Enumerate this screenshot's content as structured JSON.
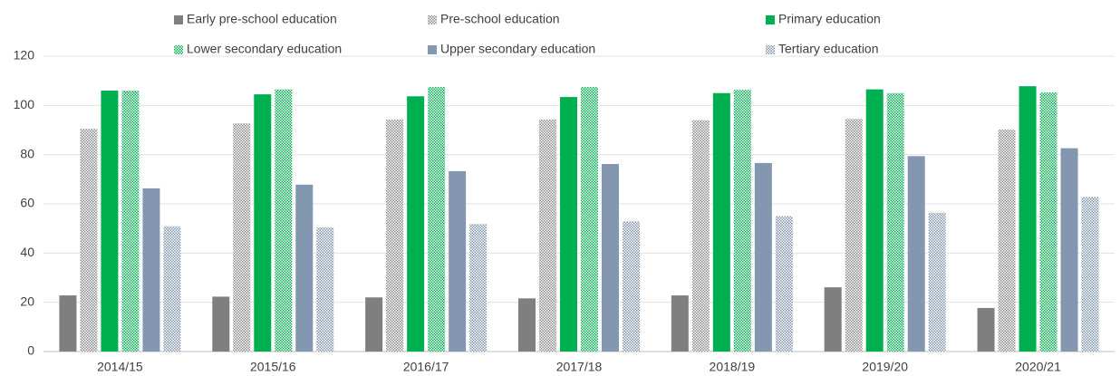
{
  "chart_data": {
    "type": "bar",
    "categories": [
      "2014/15",
      "2015/16",
      "2016/17",
      "2017/18",
      "2018/19",
      "2019/20",
      "2020/21"
    ],
    "series": [
      {
        "name": "Early pre-school education",
        "color": "#7f7f7f",
        "pattern": false,
        "values": [
          22.8,
          22.3,
          22,
          21.6,
          22.8,
          26.1,
          17.7
        ]
      },
      {
        "name": "Pre-school education",
        "color": "#8c8c8c",
        "pattern": true,
        "values": [
          90.5,
          92.7,
          94.3,
          94.3,
          94,
          94.5,
          90.2
        ]
      },
      {
        "name": "Primary education",
        "color": "#00b050",
        "pattern": false,
        "values": [
          106,
          104.5,
          103.7,
          103.4,
          105,
          106.5,
          107.8
        ]
      },
      {
        "name": "Lower secondary education",
        "color": "#00b050",
        "pattern": true,
        "values": [
          106,
          106.5,
          107.5,
          107.5,
          106.3,
          105,
          105.3
        ]
      },
      {
        "name": "Upper secondary education",
        "color": "#8497b0",
        "pattern": false,
        "values": [
          66.3,
          67.8,
          73.3,
          76.2,
          76.6,
          79.4,
          82.6
        ]
      },
      {
        "name": "Tertiary education",
        "color": "#8497b0",
        "pattern": true,
        "values": [
          50.8,
          50.4,
          51.8,
          52.9,
          55,
          56.4,
          62.8
        ]
      }
    ],
    "ylim": [
      0,
      120
    ],
    "yticks": [
      0,
      20,
      40,
      60,
      80,
      100,
      120
    ],
    "grid": true
  }
}
